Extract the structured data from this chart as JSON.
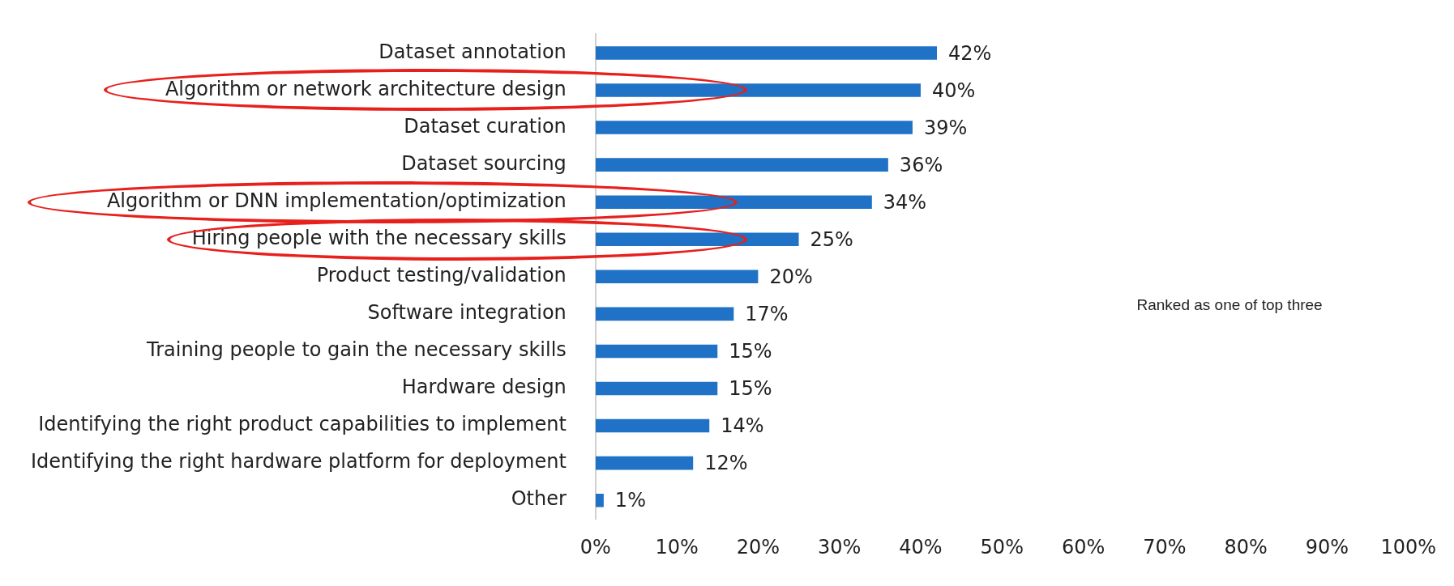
{
  "chart_data": {
    "type": "bar",
    "orientation": "horizontal",
    "categories": [
      "Dataset annotation",
      "Algorithm or network architecture design",
      "Dataset curation",
      "Dataset sourcing",
      "Algorithm or DNN implementation/optimization",
      "Hiring people with the necessary skills",
      "Product testing/validation",
      "Software integration",
      "Training people to gain the necessary skills",
      "Hardware design",
      "Identifying the right product capabilities to implement",
      "Identifying the right hardware platform for deployment",
      "Other"
    ],
    "values": [
      42,
      40,
      39,
      36,
      34,
      25,
      20,
      17,
      15,
      15,
      14,
      12,
      1
    ],
    "value_labels": [
      "42%",
      "40%",
      "39%",
      "36%",
      "34%",
      "25%",
      "20%",
      "17%",
      "15%",
      "15%",
      "14%",
      "12%",
      "1%"
    ],
    "color": "#1f72c6",
    "xlim": [
      0,
      100
    ],
    "xticks": [
      {
        "value": 0,
        "label": "0%"
      },
      {
        "value": 10,
        "label": "10%"
      },
      {
        "value": 20,
        "label": "20%"
      },
      {
        "value": 30,
        "label": "30%"
      },
      {
        "value": 40,
        "label": "40%"
      },
      {
        "value": 50,
        "label": "50%"
      },
      {
        "value": 60,
        "label": "60%"
      },
      {
        "value": 70,
        "label": "70%"
      },
      {
        "value": 80,
        "label": "80%"
      },
      {
        "value": 90,
        "label": "90%"
      },
      {
        "value": 100,
        "label": "100%"
      }
    ],
    "grid": false,
    "annotations": [
      "Ranked as one of top three"
    ]
  }
}
